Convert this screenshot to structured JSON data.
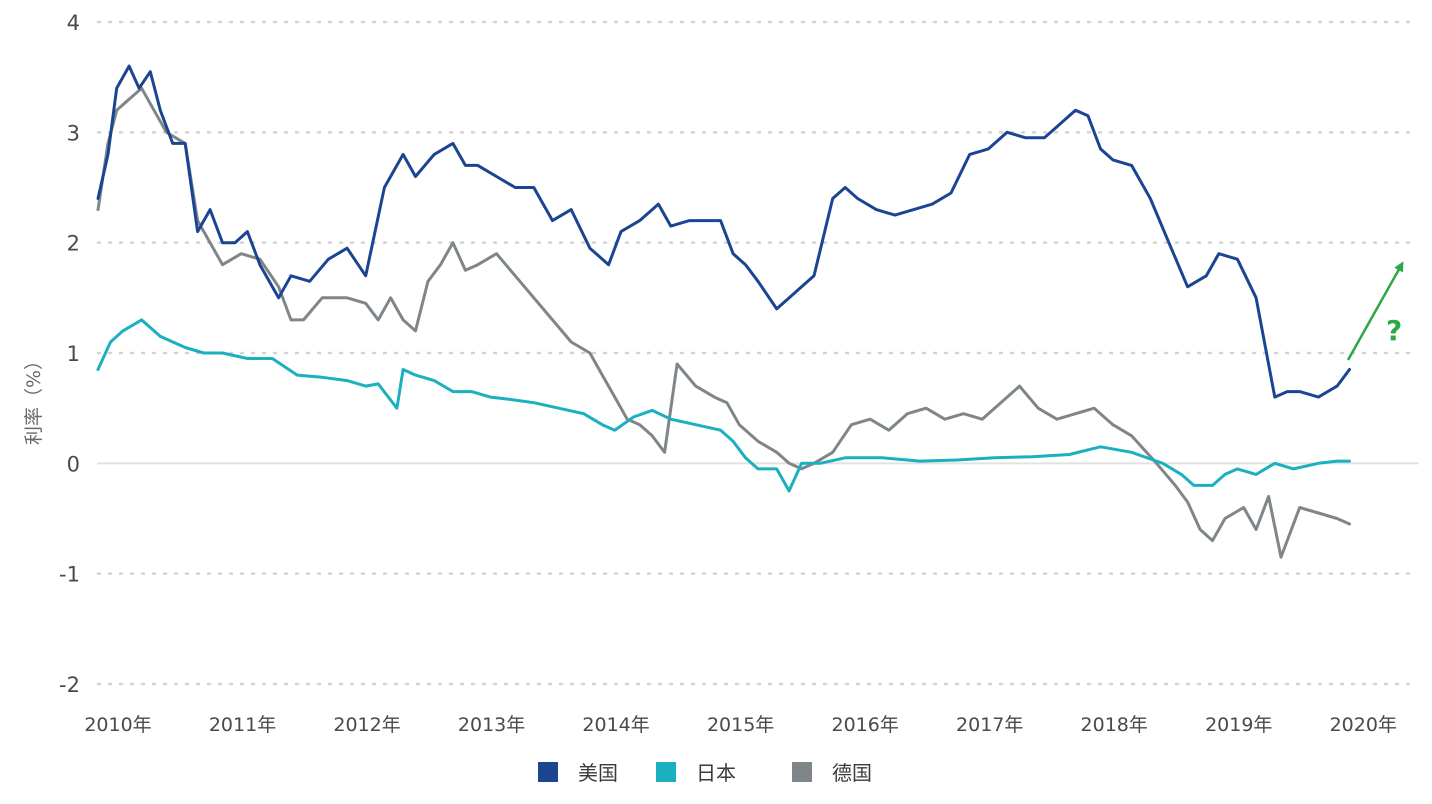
{
  "chart_data": {
    "type": "line",
    "title": "",
    "xlabel": "",
    "ylabel": "利率（%）",
    "ylim": [
      -2,
      4
    ],
    "xlim": [
      2010.0,
      2020.6
    ],
    "grid": true,
    "y_ticks": [
      "4",
      "3",
      "2",
      "1",
      "0",
      "-1",
      "-2"
    ],
    "y_tick_values": [
      4,
      3,
      2,
      1,
      0,
      -1,
      -2
    ],
    "x_ticks": [
      "2010年",
      "2011年",
      "2012年",
      "2013年",
      "2014年",
      "2015年",
      "2016年",
      "2017年",
      "2018年",
      "2019年",
      "2020年"
    ],
    "x_tick_values": [
      2010,
      2011,
      2012,
      2013,
      2014,
      2015,
      2016,
      2017,
      2018,
      2019,
      2020
    ],
    "legend_position": "bottom-center",
    "series": [
      {
        "name": "美国",
        "color": "#1b4593",
        "x": [
          2010.0,
          2010.08,
          2010.15,
          2010.25,
          2010.33,
          2010.42,
          2010.5,
          2010.6,
          2010.7,
          2010.8,
          2010.9,
          2011.0,
          2011.1,
          2011.2,
          2011.3,
          2011.45,
          2011.55,
          2011.7,
          2011.85,
          2012.0,
          2012.15,
          2012.3,
          2012.45,
          2012.55,
          2012.7,
          2012.85,
          2012.95,
          2013.05,
          2013.2,
          2013.35,
          2013.5,
          2013.65,
          2013.8,
          2013.95,
          2014.1,
          2014.2,
          2014.35,
          2014.5,
          2014.6,
          2014.75,
          2014.9,
          2015.0,
          2015.1,
          2015.2,
          2015.3,
          2015.45,
          2015.6,
          2015.75,
          2015.9,
          2016.0,
          2016.1,
          2016.25,
          2016.4,
          2016.55,
          2016.7,
          2016.85,
          2017.0,
          2017.15,
          2017.3,
          2017.45,
          2017.6,
          2017.75,
          2017.85,
          2017.95,
          2018.05,
          2018.15,
          2018.3,
          2018.45,
          2018.6,
          2018.75,
          2018.9,
          2019.0,
          2019.15,
          2019.3,
          2019.45,
          2019.55,
          2019.65,
          2019.8,
          2019.95,
          2020.05
        ],
        "values": [
          2.4,
          2.8,
          3.4,
          3.6,
          3.4,
          3.55,
          3.2,
          2.9,
          2.9,
          2.1,
          2.3,
          2.0,
          2.0,
          2.1,
          1.8,
          1.5,
          1.7,
          1.65,
          1.85,
          1.95,
          1.7,
          2.5,
          2.8,
          2.6,
          2.8,
          2.9,
          2.7,
          2.7,
          2.6,
          2.5,
          2.5,
          2.2,
          2.3,
          1.95,
          1.8,
          2.1,
          2.2,
          2.35,
          2.15,
          2.2,
          2.2,
          2.2,
          1.9,
          1.8,
          1.65,
          1.4,
          1.55,
          1.7,
          2.4,
          2.5,
          2.4,
          2.3,
          2.25,
          2.3,
          2.35,
          2.45,
          2.8,
          2.85,
          3.0,
          2.95,
          2.95,
          3.1,
          3.2,
          3.15,
          2.85,
          2.75,
          2.7,
          2.4,
          2.0,
          1.6,
          1.7,
          1.9,
          1.85,
          1.5,
          0.6,
          0.65,
          0.65,
          0.6,
          0.7,
          0.85
        ]
      },
      {
        "name": "日本",
        "color": "#1ab0bf",
        "x": [
          2010.0,
          2010.1,
          2010.2,
          2010.35,
          2010.5,
          2010.7,
          2010.85,
          2011.0,
          2011.2,
          2011.4,
          2011.6,
          2011.8,
          2012.0,
          2012.15,
          2012.25,
          2012.4,
          2012.45,
          2012.55,
          2012.7,
          2012.85,
          2013.0,
          2013.15,
          2013.3,
          2013.5,
          2013.7,
          2013.9,
          2014.05,
          2014.15,
          2014.3,
          2014.45,
          2014.6,
          2014.8,
          2015.0,
          2015.1,
          2015.2,
          2015.3,
          2015.45,
          2015.55,
          2015.65,
          2015.8,
          2016.0,
          2016.3,
          2016.6,
          2016.9,
          2017.2,
          2017.5,
          2017.8,
          2018.05,
          2018.3,
          2018.55,
          2018.7,
          2018.8,
          2018.95,
          2019.05,
          2019.15,
          2019.3,
          2019.45,
          2019.6,
          2019.8,
          2019.95,
          2020.05
        ],
        "values": [
          0.85,
          1.1,
          1.2,
          1.3,
          1.15,
          1.05,
          1.0,
          1.0,
          0.95,
          0.95,
          0.8,
          0.78,
          0.75,
          0.7,
          0.72,
          0.5,
          0.85,
          0.8,
          0.75,
          0.65,
          0.65,
          0.6,
          0.58,
          0.55,
          0.5,
          0.45,
          0.35,
          0.3,
          0.42,
          0.48,
          0.4,
          0.35,
          0.3,
          0.2,
          0.05,
          -0.05,
          -0.05,
          -0.25,
          0.0,
          0.0,
          0.05,
          0.05,
          0.02,
          0.03,
          0.05,
          0.06,
          0.08,
          0.15,
          0.1,
          0.0,
          -0.1,
          -0.2,
          -0.2,
          -0.1,
          -0.05,
          -0.1,
          0.0,
          -0.05,
          0.0,
          0.02,
          0.02
        ]
      },
      {
        "name": "德国",
        "color": "#7f868a",
        "x": [
          2010.0,
          2010.08,
          2010.15,
          2010.25,
          2010.35,
          2010.45,
          2010.55,
          2010.7,
          2010.8,
          2010.9,
          2011.0,
          2011.15,
          2011.3,
          2011.45,
          2011.55,
          2011.65,
          2011.8,
          2012.0,
          2012.15,
          2012.25,
          2012.35,
          2012.45,
          2012.55,
          2012.65,
          2012.75,
          2012.85,
          2012.95,
          2013.05,
          2013.2,
          2013.35,
          2013.5,
          2013.65,
          2013.8,
          2013.95,
          2014.05,
          2014.15,
          2014.25,
          2014.35,
          2014.45,
          2014.55,
          2014.65,
          2014.8,
          2014.95,
          2015.05,
          2015.15,
          2015.3,
          2015.45,
          2015.55,
          2015.65,
          2015.75,
          2015.9,
          2016.05,
          2016.2,
          2016.35,
          2016.5,
          2016.65,
          2016.8,
          2016.95,
          2017.1,
          2017.25,
          2017.4,
          2017.55,
          2017.7,
          2017.85,
          2018.0,
          2018.15,
          2018.3,
          2018.5,
          2018.65,
          2018.75,
          2018.85,
          2018.95,
          2019.05,
          2019.2,
          2019.3,
          2019.4,
          2019.5,
          2019.65,
          2019.8,
          2019.95,
          2020.05
        ],
        "values": [
          2.3,
          2.9,
          3.2,
          3.3,
          3.4,
          3.2,
          3.0,
          2.9,
          2.2,
          2.0,
          1.8,
          1.9,
          1.85,
          1.6,
          1.3,
          1.3,
          1.5,
          1.5,
          1.45,
          1.3,
          1.5,
          1.3,
          1.2,
          1.65,
          1.8,
          2.0,
          1.75,
          1.8,
          1.9,
          1.7,
          1.5,
          1.3,
          1.1,
          1.0,
          0.8,
          0.6,
          0.4,
          0.35,
          0.25,
          0.1,
          0.9,
          0.7,
          0.6,
          0.55,
          0.35,
          0.2,
          0.1,
          0.0,
          -0.05,
          0.0,
          0.1,
          0.35,
          0.4,
          0.3,
          0.45,
          0.5,
          0.4,
          0.45,
          0.4,
          0.55,
          0.7,
          0.5,
          0.4,
          0.45,
          0.5,
          0.35,
          0.25,
          0.0,
          -0.2,
          -0.35,
          -0.6,
          -0.7,
          -0.5,
          -0.4,
          -0.6,
          -0.3,
          -0.85,
          -0.4,
          -0.45,
          -0.5,
          -0.55
        ]
      }
    ],
    "annotations": [
      {
        "text": "?",
        "color": "#2ca845"
      }
    ]
  }
}
